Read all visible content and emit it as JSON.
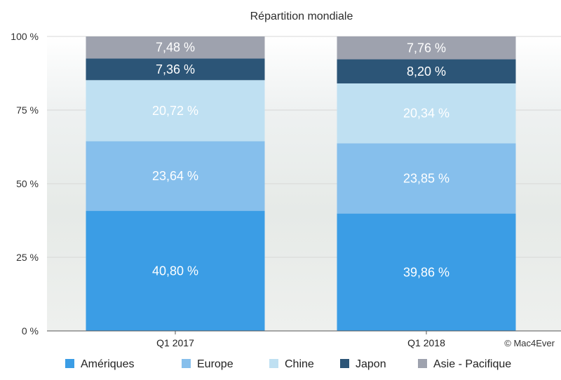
{
  "chart_data": {
    "type": "bar",
    "stacked": true,
    "title": "Répartition mondiale",
    "categories": [
      "Q1 2017",
      "Q1 2018"
    ],
    "ylim": [
      0,
      100
    ],
    "yticks": [
      "0 %",
      "25 %",
      "50 %",
      "75 %",
      "100 %"
    ],
    "ytick_values": [
      0,
      25,
      50,
      75,
      100
    ],
    "series": [
      {
        "name": "Amériques",
        "color": "#3b9de5",
        "text_color": "#ffffff",
        "values": [
          40.8,
          39.86
        ],
        "labels": [
          "40,80 %",
          "39,86 %"
        ]
      },
      {
        "name": "Europe",
        "color": "#86bfec",
        "text_color": "#ffffff",
        "values": [
          23.64,
          23.85
        ],
        "labels": [
          "23,64 %",
          "23,85 %"
        ]
      },
      {
        "name": "Chine",
        "color": "#bfe0f2",
        "text_color": "#ffffff",
        "values": [
          20.72,
          20.34
        ],
        "labels": [
          "20,72 %",
          "20,34 %"
        ]
      },
      {
        "name": "Japon",
        "color": "#2c5577",
        "text_color": "#ffffff",
        "values": [
          7.36,
          8.2
        ],
        "labels": [
          "7,36 %",
          "8,20 %"
        ]
      },
      {
        "name": "Asie - Pacifique",
        "color": "#9ea2ae",
        "text_color": "#ffffff",
        "values": [
          7.48,
          7.76
        ],
        "labels": [
          "7,48 %",
          "7,76 %"
        ]
      }
    ],
    "legend_position": "bottom",
    "grid": true
  },
  "credit": "© Mac4Ever"
}
